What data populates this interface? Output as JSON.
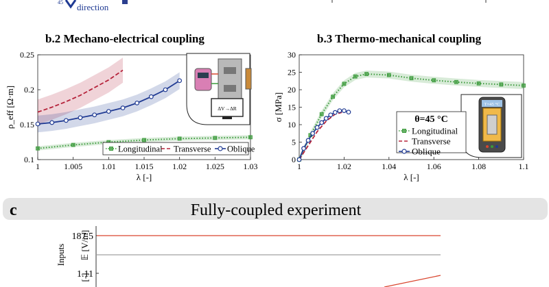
{
  "top_fragment": {
    "num": "45",
    "label": "direction"
  },
  "panel_c": {
    "letter": "c",
    "title": "Fully-coupled experiment"
  },
  "inputs": {
    "side_label": "Inputs",
    "e_label": "𝔼 [V/m]",
    "e_value": "187.5",
    "lambda_label": "[-]",
    "lambda_value": "1.11"
  },
  "chart_data": [
    {
      "id": "b2",
      "type": "line",
      "title": "b.2  Mechano-electrical coupling",
      "xlabel": "λ [-]",
      "ylabel": "ρ_eff [Ω·m]",
      "xlim": [
        1,
        1.03
      ],
      "ylim": [
        0.1,
        0.25
      ],
      "xticks": [
        "1",
        "1.005",
        "1.01",
        "1.015",
        "1.02",
        "1.025",
        "1.03"
      ],
      "yticks": [
        "0.1",
        "0.15",
        "0.2",
        "0.25"
      ],
      "legend_position": "bottom-right",
      "inset": {
        "label": "ΔV→ΔR"
      },
      "series": [
        {
          "name": "Longitudinal",
          "color": "#3a9a3a",
          "style": "dotted",
          "marker": "square",
          "x": [
            1.0,
            1.005,
            1.01,
            1.015,
            1.02,
            1.025,
            1.03
          ],
          "y": [
            0.116,
            0.121,
            0.125,
            0.128,
            0.13,
            0.131,
            0.132
          ],
          "band": 0.003
        },
        {
          "name": "Transverse",
          "color": "#b5223a",
          "style": "dashed",
          "marker": "none",
          "x": [
            1.0,
            1.002,
            1.004,
            1.006,
            1.008,
            1.01,
            1.012
          ],
          "y": [
            0.168,
            0.175,
            0.183,
            0.192,
            0.203,
            0.214,
            0.228
          ],
          "band": 0.018
        },
        {
          "name": "Oblique",
          "color": "#1f3a93",
          "style": "solid",
          "marker": "circle",
          "x": [
            1.0,
            1.002,
            1.004,
            1.006,
            1.008,
            1.01,
            1.012,
            1.014,
            1.016,
            1.018,
            1.02
          ],
          "y": [
            0.151,
            0.153,
            0.156,
            0.16,
            0.164,
            0.169,
            0.174,
            0.181,
            0.19,
            0.2,
            0.213
          ],
          "band": 0.012
        }
      ]
    },
    {
      "id": "b3",
      "type": "line",
      "title": "b.3 Thermo-mechanical coupling",
      "xlabel": "λ [-]",
      "ylabel": "σ [MPa]",
      "xlim": [
        1,
        1.1
      ],
      "ylim": [
        0,
        30
      ],
      "xticks": [
        "1",
        "1.02",
        "1.04",
        "1.06",
        "1.08",
        "1.1"
      ],
      "yticks": [
        "0",
        "5",
        "10",
        "15",
        "20",
        "25",
        "30"
      ],
      "legend_title": "θ=45 °C",
      "legend_position": "right",
      "inset": {
        "label": "T=45 °C"
      },
      "series": [
        {
          "name": "Longitudinal",
          "color": "#3a9a3a",
          "style": "dotted",
          "marker": "square",
          "x": [
            1.0,
            1.005,
            1.01,
            1.015,
            1.02,
            1.025,
            1.03,
            1.04,
            1.05,
            1.06,
            1.07,
            1.08,
            1.09,
            1.1
          ],
          "y": [
            0,
            7,
            13,
            18,
            21.7,
            23.8,
            24.5,
            24.2,
            23.3,
            22.7,
            22.2,
            21.8,
            21.5,
            21.2
          ],
          "band": 1.0
        },
        {
          "name": "Transverse",
          "color": "#b5223a",
          "style": "dashed",
          "marker": "none",
          "x": [
            1.0,
            1.004,
            1.008,
            1.012,
            1.016,
            1.019
          ],
          "y": [
            0,
            4,
            8,
            11,
            13,
            13.5
          ],
          "band": 0
        },
        {
          "name": "Oblique",
          "color": "#1f3a93",
          "style": "solid",
          "marker": "circle",
          "x": [
            1.0,
            1.002,
            1.004,
            1.006,
            1.008,
            1.01,
            1.012,
            1.014,
            1.016,
            1.018,
            1.02,
            1.022
          ],
          "y": [
            0,
            3.2,
            5.5,
            7.5,
            9.2,
            10.6,
            11.8,
            12.8,
            13.5,
            14.0,
            14.0,
            13.6
          ],
          "band": 0
        }
      ]
    }
  ]
}
